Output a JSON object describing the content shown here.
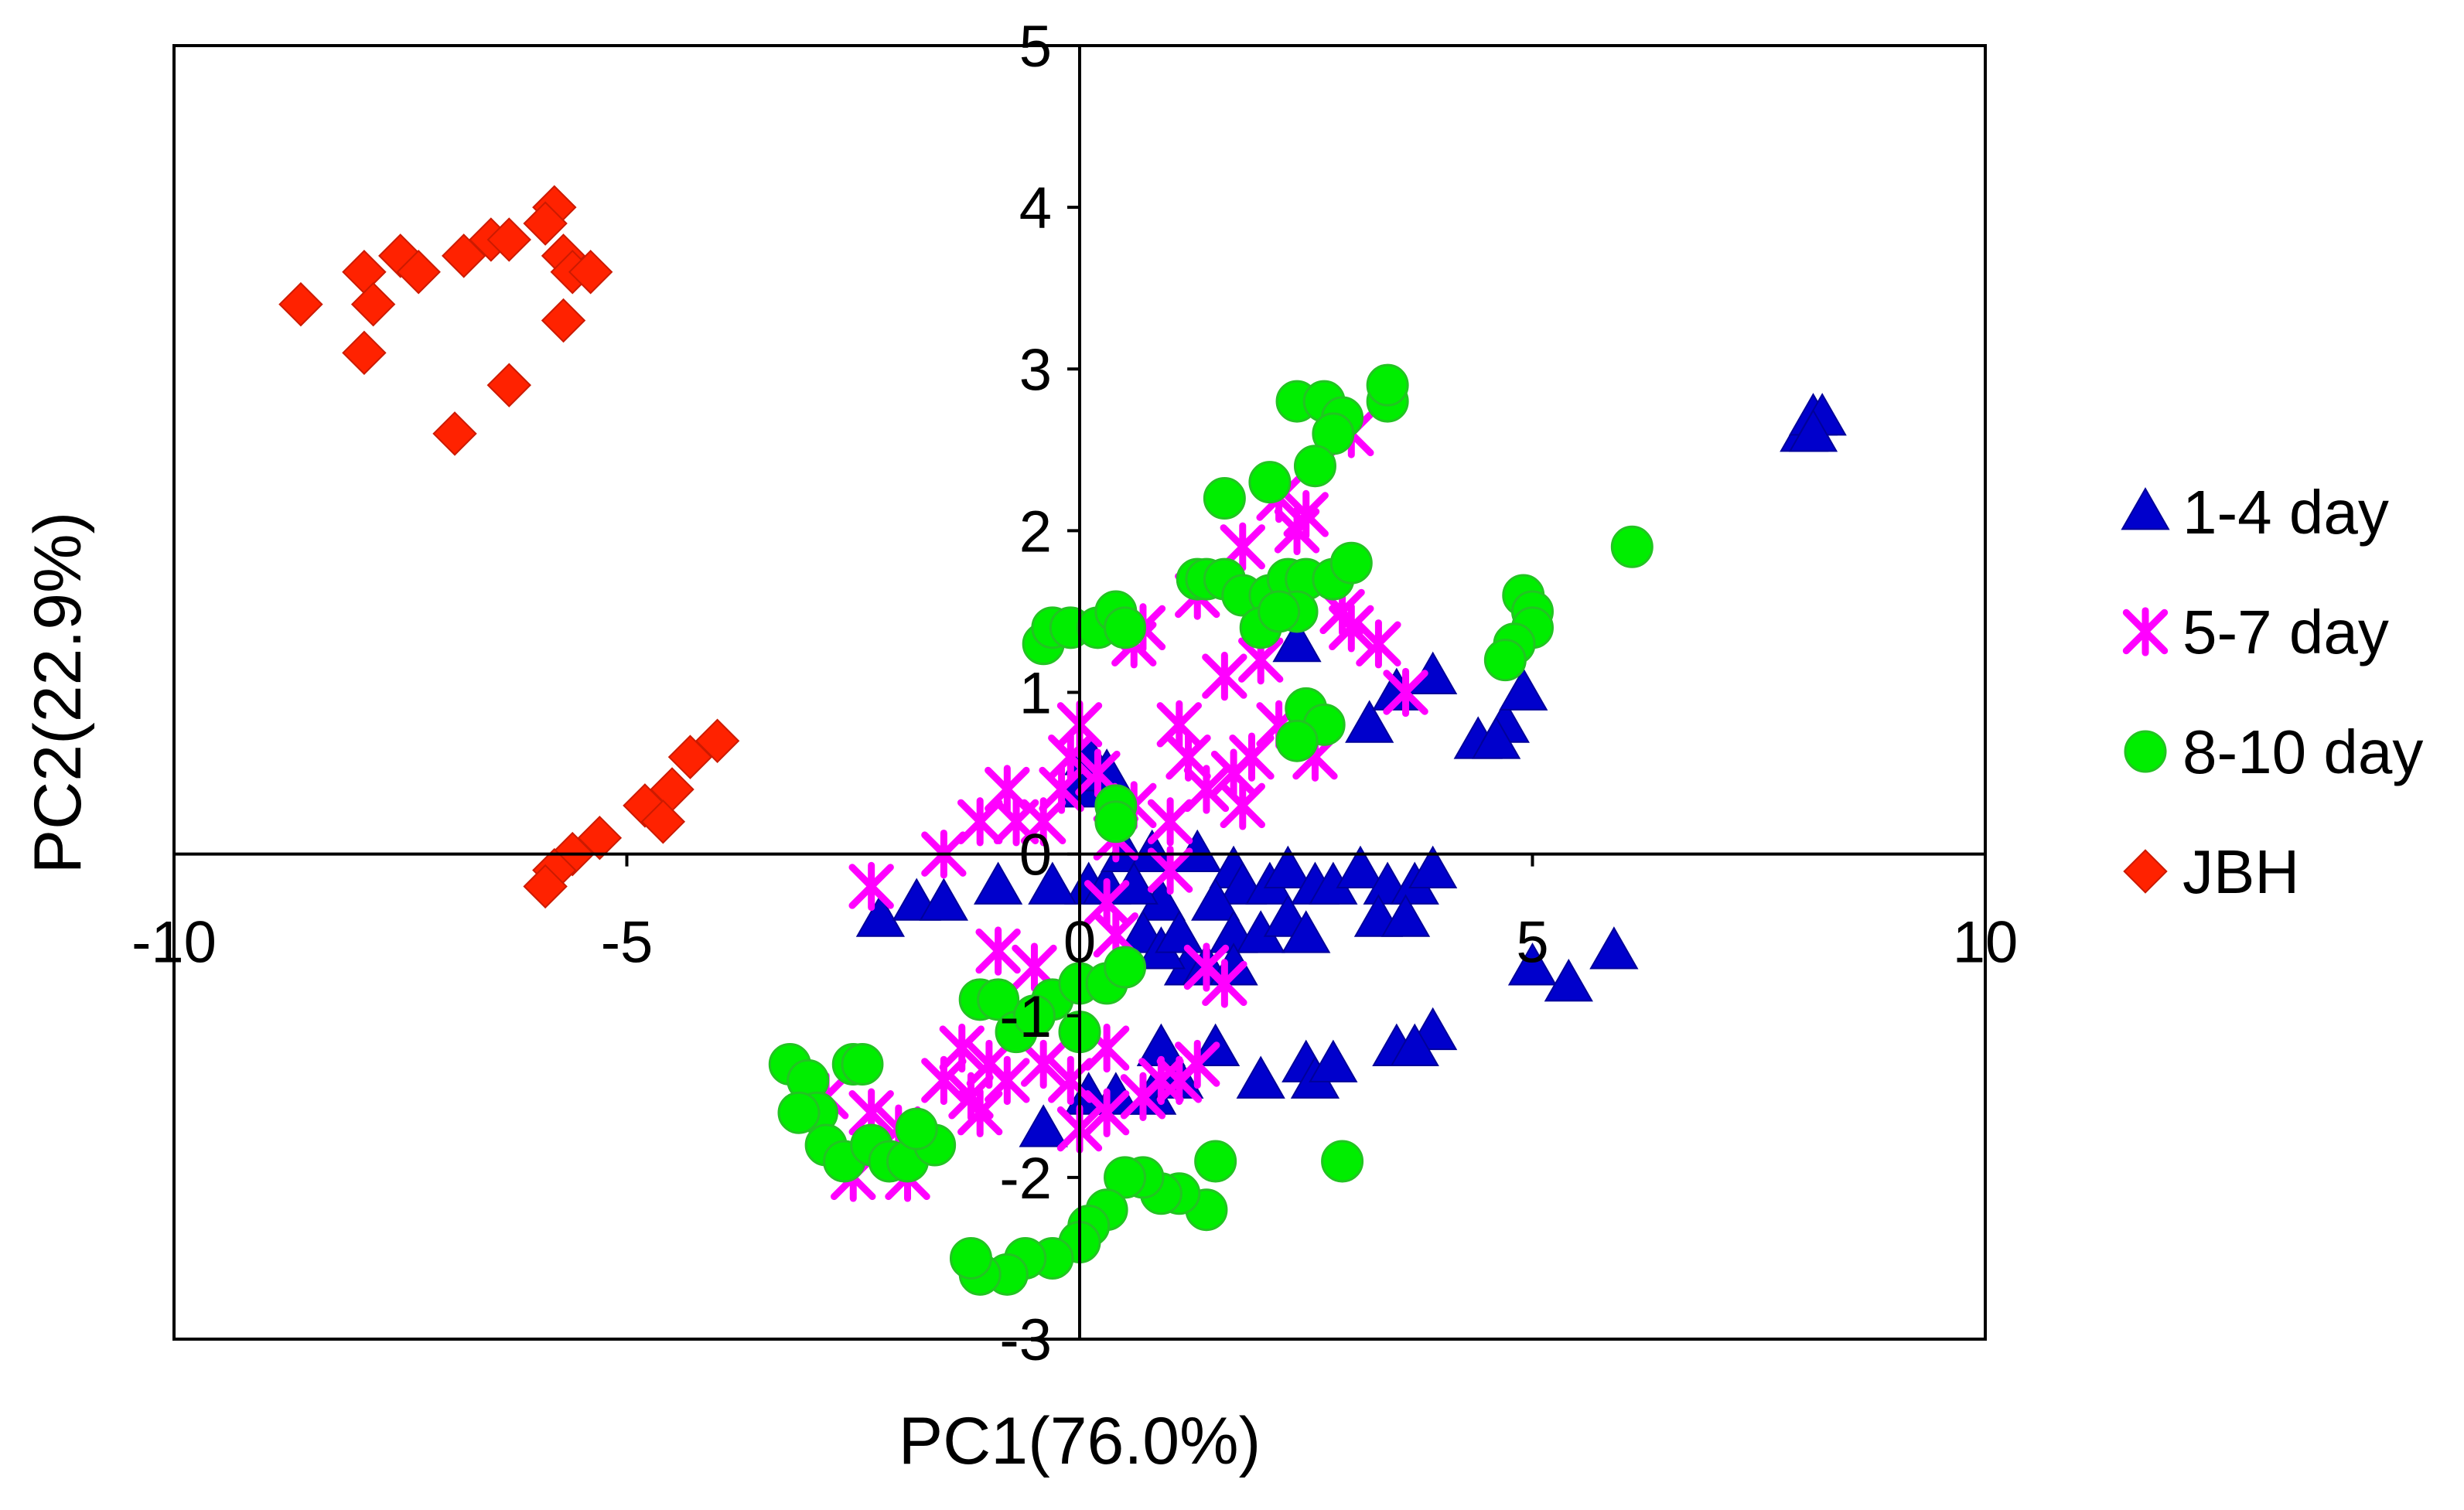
{
  "chart_data": {
    "type": "scatter",
    "title": "",
    "xlabel": "PC1(76.0%)",
    "ylabel": "PC2(22.9%)",
    "xlim": [
      -10,
      10
    ],
    "ylim": [
      -3,
      5
    ],
    "xticks": [
      -10,
      -5,
      0,
      5,
      10
    ],
    "yticks": [
      -3,
      -2,
      -1,
      0,
      1,
      2,
      3,
      4,
      5
    ],
    "x_tick_labels": [
      "-10",
      "-5",
      "0",
      "5",
      "10"
    ],
    "y_tick_labels": [
      "-3",
      "-2",
      "-1",
      "0",
      "1",
      "2",
      "3",
      "4",
      "5"
    ],
    "grid": false,
    "legend_position": "right",
    "series": [
      {
        "name": "1-4 day",
        "marker": "triangle",
        "color": "#0000CC",
        "points": [
          [
            8.0,
            2.6
          ],
          [
            8.1,
            2.7
          ],
          [
            8.2,
            2.7
          ],
          [
            8.1,
            2.6
          ],
          [
            2.4,
            1.3
          ],
          [
            3.2,
            0.8
          ],
          [
            3.5,
            1.0
          ],
          [
            3.9,
            1.1
          ],
          [
            4.4,
            0.7
          ],
          [
            4.7,
            0.8
          ],
          [
            4.6,
            0.7
          ],
          [
            4.9,
            1.0
          ],
          [
            5.0,
            -0.7
          ],
          [
            5.4,
            -0.8
          ],
          [
            5.9,
            -0.6
          ],
          [
            0.1,
            -0.2
          ],
          [
            0.3,
            -0.2
          ],
          [
            0.5,
            0.0
          ],
          [
            0.8,
            0.0
          ],
          [
            0.9,
            -0.3
          ],
          [
            0.6,
            -0.2
          ],
          [
            1.3,
            0.0
          ],
          [
            1.7,
            -0.1
          ],
          [
            1.8,
            -0.2
          ],
          [
            2.1,
            -0.2
          ],
          [
            2.3,
            -0.1
          ],
          [
            2.6,
            -0.2
          ],
          [
            2.8,
            -0.2
          ],
          [
            3.1,
            -0.1
          ],
          [
            3.4,
            -0.2
          ],
          [
            3.7,
            -0.2
          ],
          [
            3.9,
            -0.1
          ],
          [
            3.3,
            -0.4
          ],
          [
            3.6,
            -0.4
          ],
          [
            1.5,
            -0.3
          ],
          [
            1.7,
            -0.5
          ],
          [
            2.0,
            -0.5
          ],
          [
            2.3,
            -0.4
          ],
          [
            2.5,
            -0.5
          ],
          [
            1.2,
            -0.7
          ],
          [
            1.4,
            -0.7
          ],
          [
            1.7,
            -0.7
          ],
          [
            0.7,
            -0.5
          ],
          [
            0.9,
            -0.6
          ],
          [
            1.1,
            -0.5
          ],
          [
            -2.2,
            -0.4
          ],
          [
            -1.8,
            -0.3
          ],
          [
            -1.5,
            -0.3
          ],
          [
            -0.9,
            -0.2
          ],
          [
            -0.3,
            -0.2
          ],
          [
            0.1,
            0.6
          ],
          [
            0.0,
            0.4
          ],
          [
            0.3,
            0.5
          ],
          [
            1.5,
            -1.2
          ],
          [
            2.0,
            -1.4
          ],
          [
            2.5,
            -1.3
          ],
          [
            2.6,
            -1.4
          ],
          [
            2.8,
            -1.3
          ],
          [
            3.5,
            -1.2
          ],
          [
            3.9,
            -1.1
          ],
          [
            3.7,
            -1.2
          ],
          [
            0.4,
            -1.5
          ],
          [
            0.8,
            -1.5
          ],
          [
            1.1,
            -1.4
          ],
          [
            0.9,
            -1.2
          ],
          [
            0.1,
            -1.5
          ],
          [
            -0.4,
            -1.7
          ]
        ]
      },
      {
        "name": "5-7 day",
        "marker": "asterisk",
        "color": "#FF00FF",
        "points": [
          [
            3.0,
            2.6
          ],
          [
            2.5,
            2.1
          ],
          [
            2.4,
            2.0
          ],
          [
            2.2,
            2.2
          ],
          [
            1.8,
            1.9
          ],
          [
            1.3,
            1.6
          ],
          [
            0.7,
            1.4
          ],
          [
            0.6,
            1.3
          ],
          [
            3.0,
            1.4
          ],
          [
            3.3,
            1.3
          ],
          [
            2.9,
            1.5
          ],
          [
            3.6,
            1.0
          ],
          [
            2.0,
            1.2
          ],
          [
            1.6,
            1.1
          ],
          [
            2.2,
            0.8
          ],
          [
            2.6,
            0.6
          ],
          [
            -2.3,
            -0.2
          ],
          [
            -1.5,
            0.0
          ],
          [
            -1.1,
            0.2
          ],
          [
            -0.8,
            0.4
          ],
          [
            -0.7,
            0.2
          ],
          [
            -0.4,
            0.2
          ],
          [
            -0.2,
            0.4
          ],
          [
            -0.1,
            0.6
          ],
          [
            0.0,
            0.8
          ],
          [
            0.2,
            0.5
          ],
          [
            0.4,
            0.1
          ],
          [
            0.6,
            0.3
          ],
          [
            1.2,
            0.6
          ],
          [
            1.1,
            0.8
          ],
          [
            1.4,
            0.4
          ],
          [
            1.7,
            0.5
          ],
          [
            1.9,
            0.6
          ],
          [
            1.8,
            0.3
          ],
          [
            1.0,
            0.2
          ],
          [
            0.3,
            -0.3
          ],
          [
            0.4,
            -0.5
          ],
          [
            1.0,
            -0.1
          ],
          [
            -0.9,
            -0.6
          ],
          [
            -0.5,
            -0.7
          ],
          [
            1.6,
            -0.8
          ],
          [
            1.4,
            -0.7
          ],
          [
            -1.3,
            -1.2
          ],
          [
            -1.5,
            -1.4
          ],
          [
            -1.0,
            -1.3
          ],
          [
            -0.8,
            -1.4
          ],
          [
            -0.4,
            -1.3
          ],
          [
            -0.1,
            -1.4
          ],
          [
            0.3,
            -1.2
          ],
          [
            -2.3,
            -1.6
          ],
          [
            -2.8,
            -1.5
          ],
          [
            -2.0,
            -1.7
          ],
          [
            -1.2,
            -1.5
          ],
          [
            -1.1,
            -1.6
          ],
          [
            0.0,
            -1.7
          ],
          [
            0.3,
            -1.6
          ],
          [
            0.7,
            -1.5
          ],
          [
            0.9,
            -1.4
          ],
          [
            1.1,
            -1.4
          ],
          [
            1.3,
            -1.3
          ],
          [
            -2.5,
            -2.0
          ],
          [
            -1.9,
            -2.0
          ]
        ]
      },
      {
        "name": "8-10 day",
        "marker": "circle",
        "color": "#00EE00",
        "points": [
          [
            2.4,
            2.8
          ],
          [
            2.7,
            2.8
          ],
          [
            2.9,
            2.7
          ],
          [
            3.4,
            2.8
          ],
          [
            3.4,
            2.9
          ],
          [
            2.8,
            2.6
          ],
          [
            2.6,
            2.4
          ],
          [
            2.1,
            2.3
          ],
          [
            1.6,
            2.2
          ],
          [
            6.1,
            1.9
          ],
          [
            4.9,
            1.6
          ],
          [
            5.0,
            1.5
          ],
          [
            5.0,
            1.4
          ],
          [
            4.8,
            1.3
          ],
          [
            4.7,
            1.2
          ],
          [
            1.3,
            1.7
          ],
          [
            1.4,
            1.7
          ],
          [
            1.6,
            1.7
          ],
          [
            1.8,
            1.6
          ],
          [
            2.1,
            1.6
          ],
          [
            2.3,
            1.7
          ],
          [
            2.5,
            1.7
          ],
          [
            2.8,
            1.7
          ],
          [
            3.0,
            1.8
          ],
          [
            2.0,
            1.4
          ],
          [
            2.4,
            1.5
          ],
          [
            2.2,
            1.5
          ],
          [
            -0.4,
            1.3
          ],
          [
            -0.3,
            1.4
          ],
          [
            -0.1,
            1.4
          ],
          [
            0.2,
            1.4
          ],
          [
            0.4,
            1.5
          ],
          [
            0.5,
            1.4
          ],
          [
            2.5,
            0.9
          ],
          [
            2.7,
            0.8
          ],
          [
            2.4,
            0.7
          ],
          [
            0.4,
            0.3
          ],
          [
            0.4,
            0.2
          ],
          [
            -1.1,
            -0.9
          ],
          [
            -0.9,
            -0.9
          ],
          [
            -0.7,
            -1.1
          ],
          [
            -0.3,
            -0.9
          ],
          [
            0.0,
            -0.8
          ],
          [
            0.3,
            -0.8
          ],
          [
            0.5,
            -0.7
          ],
          [
            0.0,
            -1.1
          ],
          [
            -0.5,
            -1.0
          ],
          [
            -3.2,
            -1.3
          ],
          [
            -3.0,
            -1.4
          ],
          [
            -2.9,
            -1.6
          ],
          [
            -2.5,
            -1.3
          ],
          [
            -2.4,
            -1.3
          ],
          [
            -3.1,
            -1.6
          ],
          [
            -2.8,
            -1.8
          ],
          [
            -2.6,
            -1.9
          ],
          [
            -2.3,
            -1.8
          ],
          [
            -2.1,
            -1.9
          ],
          [
            -1.9,
            -1.9
          ],
          [
            -1.6,
            -1.8
          ],
          [
            -1.8,
            -1.7
          ],
          [
            2.9,
            -1.9
          ],
          [
            1.5,
            -1.9
          ],
          [
            1.4,
            -2.2
          ],
          [
            1.1,
            -2.1
          ],
          [
            0.9,
            -2.1
          ],
          [
            0.7,
            -2.0
          ],
          [
            0.5,
            -2.0
          ],
          [
            0.3,
            -2.2
          ],
          [
            0.1,
            -2.3
          ],
          [
            0.0,
            -2.4
          ],
          [
            -0.3,
            -2.5
          ],
          [
            -0.6,
            -2.5
          ],
          [
            -0.8,
            -2.6
          ],
          [
            -1.1,
            -2.6
          ],
          [
            -1.2,
            -2.5
          ]
        ]
      },
      {
        "name": "JBH",
        "marker": "diamond",
        "color": "#FF2200",
        "points": [
          [
            -8.6,
            3.4
          ],
          [
            -7.9,
            3.6
          ],
          [
            -7.8,
            3.4
          ],
          [
            -7.5,
            3.7
          ],
          [
            -7.3,
            3.6
          ],
          [
            -6.8,
            3.7
          ],
          [
            -6.5,
            3.8
          ],
          [
            -6.3,
            3.8
          ],
          [
            -5.8,
            4.0
          ],
          [
            -5.9,
            3.9
          ],
          [
            -5.7,
            3.7
          ],
          [
            -5.6,
            3.6
          ],
          [
            -5.4,
            3.6
          ],
          [
            -7.9,
            3.1
          ],
          [
            -5.7,
            3.3
          ],
          [
            -6.3,
            2.9
          ],
          [
            -6.9,
            2.6
          ],
          [
            -4.0,
            0.7
          ],
          [
            -4.3,
            0.6
          ],
          [
            -4.5,
            0.4
          ],
          [
            -4.8,
            0.3
          ],
          [
            -4.6,
            0.2
          ],
          [
            -5.3,
            0.1
          ],
          [
            -5.6,
            0.0
          ],
          [
            -5.8,
            -0.1
          ],
          [
            -5.9,
            -0.2
          ]
        ]
      }
    ]
  }
}
